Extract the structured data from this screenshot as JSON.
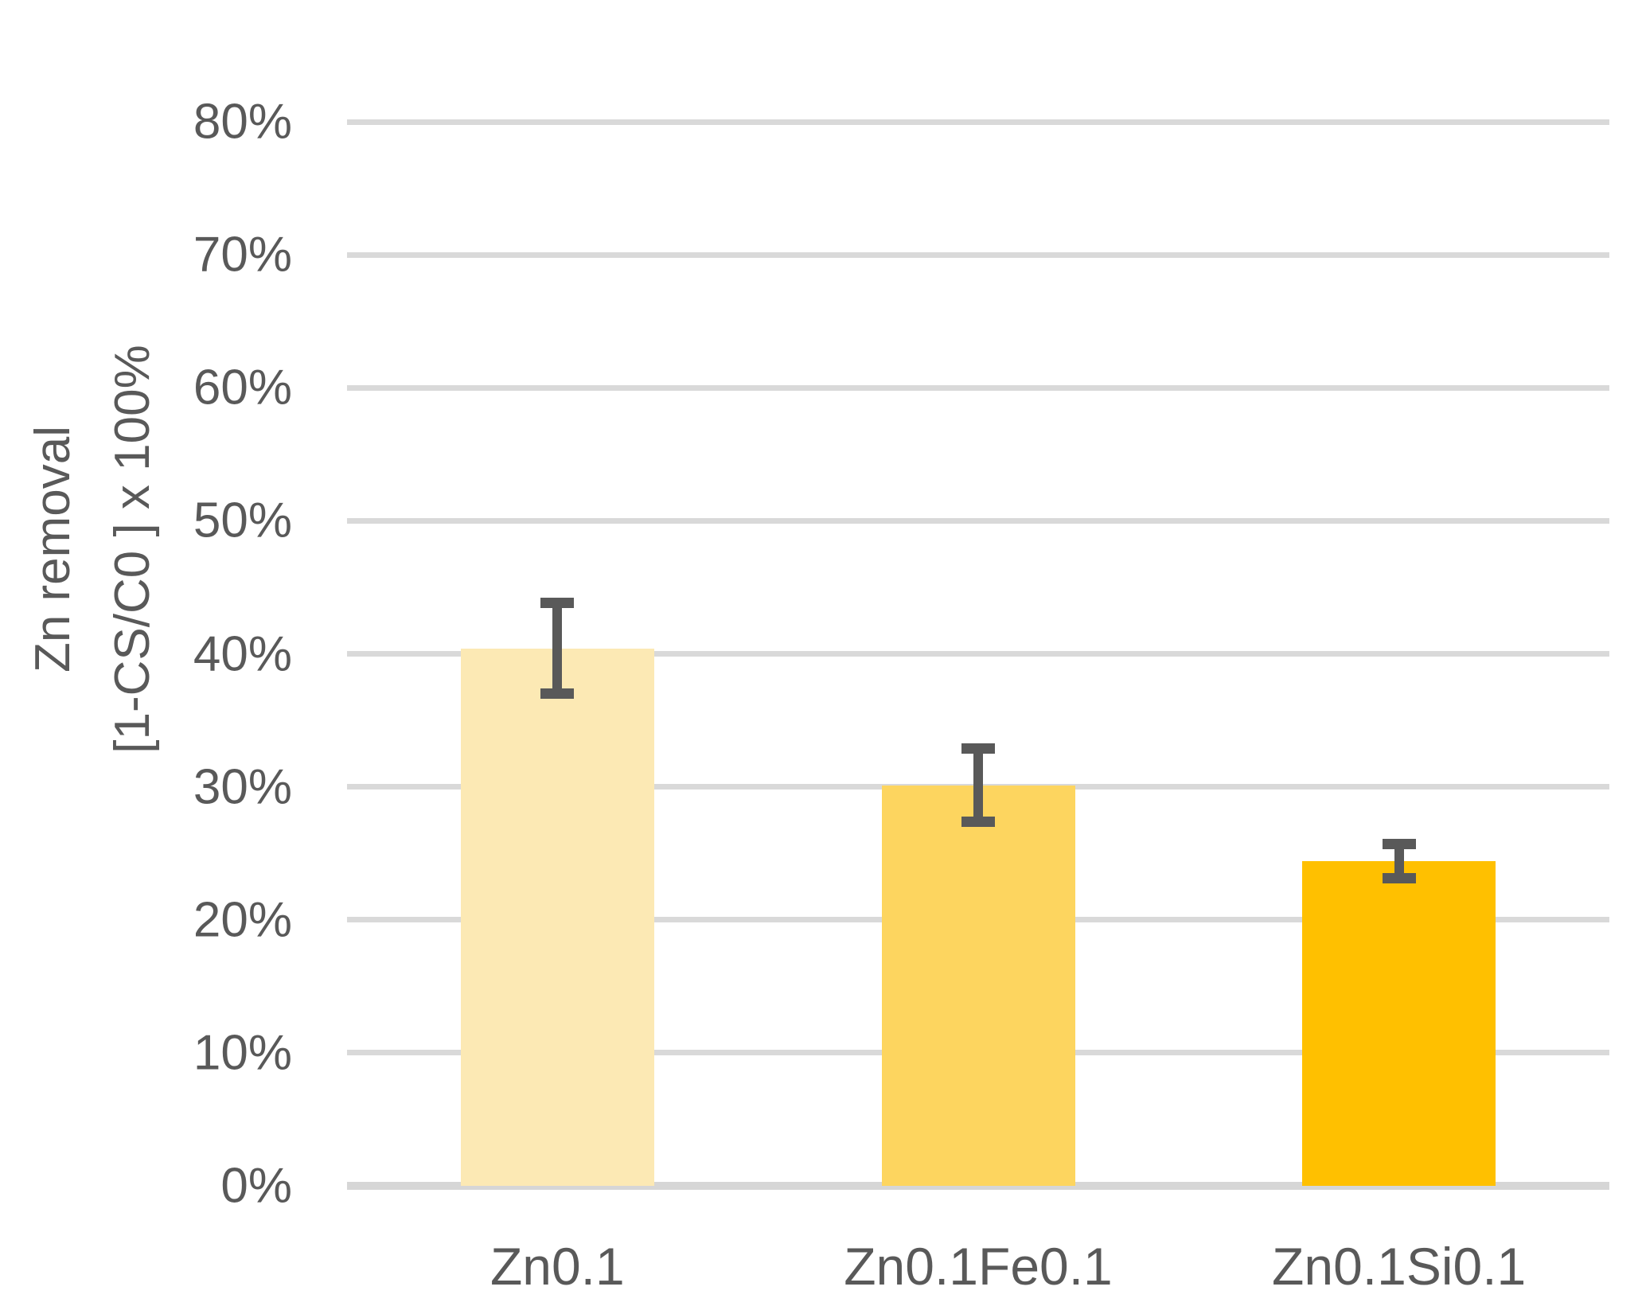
{
  "chart_data": {
    "type": "bar",
    "title": "",
    "categories": [
      "Zn0.1",
      "Zn0.1Fe0.1",
      "Zn0.1Si0.1"
    ],
    "values": [
      40.4,
      30.1,
      24.4
    ],
    "error_bars": [
      3.4,
      2.75,
      1.3
    ],
    "y_axis_title_line1": "Zn removal",
    "y_axis_title_line2": "[1-CS/C0 ] x 100%",
    "y_tick_labels": [
      "0%",
      "10%",
      "20%",
      "30%",
      "40%",
      "50%",
      "60%",
      "70%",
      "80%"
    ],
    "y_tick_values": [
      0,
      10,
      20,
      30,
      40,
      50,
      60,
      70,
      80
    ],
    "ylim": [
      0,
      80
    ],
    "grid": true,
    "legend_position": "none",
    "bar_colors": [
      "#FCE9B4",
      "#FDD55F",
      "#FFC000"
    ],
    "error_bar_color": "#595959",
    "gridline_color": "#D9D9D9",
    "axis_line_color": "#D6D6D6",
    "text_color": "#595959"
  }
}
